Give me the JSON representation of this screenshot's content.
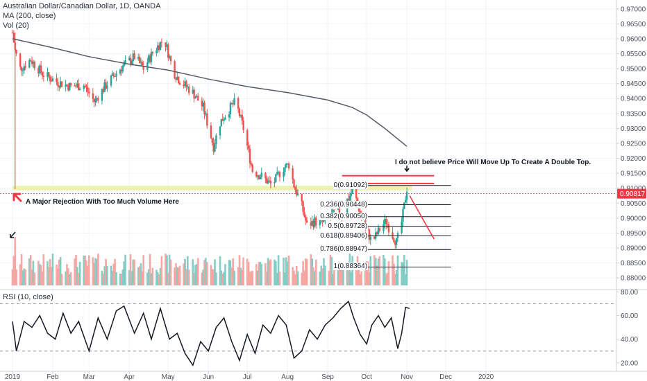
{
  "legend": {
    "symbol_line": "Australian Dollar/Canadian Dollar, 1D, OANDA",
    "ma_line": "MA (200, close)",
    "vol_line": "Vol (20)",
    "rsi_line": "RSI (10, close)"
  },
  "annotations": {
    "double_top_note": "I do not believe Price Will Move Up To Create A Double Top.",
    "rejection_note": "A Major Rejection With Too Much Volume Here"
  },
  "price_label": "0.90817",
  "colors": {
    "up": "#26a69a",
    "down": "#ef5350",
    "vol_up": "#83cdc4",
    "vol_down": "#f6a6a3",
    "ma": "#555a64",
    "rsi": "#131722",
    "support_zone": "#e8f3a8",
    "red_marker": "#f23645",
    "price_tag": "#f23645"
  },
  "chart_data": [
    {
      "type": "candlestick",
      "title": "Australian Dollar/Canadian Dollar, 1D, OANDA",
      "y_axis_side": "right",
      "ylim": [
        0.8775,
        0.9718
      ],
      "yticks": [
        "0.97000",
        "0.96500",
        "0.96000",
        "0.95500",
        "0.95000",
        "0.94500",
        "0.94000",
        "0.93500",
        "0.93000",
        "0.92500",
        "0.92000",
        "0.91500",
        "0.91000",
        "0.90500",
        "0.90000",
        "0.89500",
        "0.89000",
        "0.88500",
        "0.88000"
      ],
      "x_ticks": [
        "2019",
        "Feb",
        "Mar",
        "Apr",
        "May",
        "Jun",
        "Jul",
        "Aug",
        "Sep",
        "Oct",
        "Nov",
        "Dec",
        "2020"
      ],
      "close_path": [
        [
          "2019-01-01",
          0.962
        ],
        [
          "2019-01-03",
          0.956
        ],
        [
          "2019-01-07",
          0.95
        ],
        [
          "2019-01-15",
          0.953
        ],
        [
          "2019-01-25",
          0.948
        ],
        [
          "2019-02-05",
          0.9455
        ],
        [
          "2019-02-15",
          0.944
        ],
        [
          "2019-02-25",
          0.9445
        ],
        [
          "2019-03-05",
          0.939
        ],
        [
          "2019-03-15",
          0.945
        ],
        [
          "2019-03-25",
          0.95
        ],
        [
          "2019-04-05",
          0.954
        ],
        [
          "2019-04-12",
          0.95
        ],
        [
          "2019-04-20",
          0.956
        ],
        [
          "2019-04-28",
          0.96
        ],
        [
          "2019-05-05",
          0.949
        ],
        [
          "2019-05-10",
          0.946
        ],
        [
          "2019-05-20",
          0.942
        ],
        [
          "2019-05-28",
          0.937
        ],
        [
          "2019-06-05",
          0.924
        ],
        [
          "2019-06-10",
          0.932
        ],
        [
          "2019-06-18",
          0.937
        ],
        [
          "2019-06-22",
          0.939
        ],
        [
          "2019-06-28",
          0.93
        ],
        [
          "2019-07-05",
          0.916
        ],
        [
          "2019-07-12",
          0.914
        ],
        [
          "2019-07-20",
          0.911
        ],
        [
          "2019-07-28",
          0.9165
        ],
        [
          "2019-08-02",
          0.918
        ],
        [
          "2019-08-06",
          0.911
        ],
        [
          "2019-08-12",
          0.904
        ],
        [
          "2019-08-16",
          0.8975
        ],
        [
          "2019-08-22",
          0.899
        ],
        [
          "2019-08-28",
          0.8985
        ],
        [
          "2019-09-03",
          0.9
        ],
        [
          "2019-09-08",
          0.903
        ],
        [
          "2019-09-12",
          0.901
        ],
        [
          "2019-09-16",
          0.906
        ],
        [
          "2019-09-20",
          0.909
        ],
        [
          "2019-09-24",
          0.905
        ],
        [
          "2019-09-28",
          0.898
        ],
        [
          "2019-10-02",
          0.895
        ],
        [
          "2019-10-05",
          0.892
        ],
        [
          "2019-10-08",
          0.894
        ],
        [
          "2019-10-12",
          0.897
        ],
        [
          "2019-10-16",
          0.899
        ],
        [
          "2019-10-20",
          0.895
        ],
        [
          "2019-10-24",
          0.892
        ],
        [
          "2019-10-27",
          0.896
        ],
        [
          "2019-10-30",
          0.904
        ],
        [
          "2019-11-01",
          0.91
        ],
        [
          "2019-11-02",
          0.9082
        ]
      ],
      "moving_average": [
        [
          "2019-01-01",
          0.96
        ],
        [
          "2019-02-01",
          0.957
        ],
        [
          "2019-03-01",
          0.954
        ],
        [
          "2019-04-01",
          0.9515
        ],
        [
          "2019-05-01",
          0.9495
        ],
        [
          "2019-06-01",
          0.9465
        ],
        [
          "2019-07-01",
          0.944
        ],
        [
          "2019-08-01",
          0.942
        ],
        [
          "2019-09-01",
          0.9395
        ],
        [
          "2019-09-20",
          0.937
        ],
        [
          "2019-10-01",
          0.9345
        ],
        [
          "2019-10-15",
          0.93
        ],
        [
          "2019-11-01",
          0.924
        ]
      ],
      "rsi": {
        "ylim": [
          14,
          82
        ],
        "yticks": [
          "80.00",
          "60.00",
          "40.00",
          "20.00"
        ],
        "levels": [
          70,
          30
        ],
        "values": [
          [
            "2019-01-01",
            55
          ],
          [
            "2019-01-04",
            30
          ],
          [
            "2019-01-10",
            55
          ],
          [
            "2019-01-16",
            50
          ],
          [
            "2019-01-22",
            60
          ],
          [
            "2019-01-28",
            45
          ],
          [
            "2019-02-03",
            40
          ],
          [
            "2019-02-09",
            62
          ],
          [
            "2019-02-15",
            45
          ],
          [
            "2019-02-21",
            55
          ],
          [
            "2019-03-01",
            30
          ],
          [
            "2019-03-08",
            58
          ],
          [
            "2019-03-15",
            40
          ],
          [
            "2019-03-22",
            64
          ],
          [
            "2019-03-28",
            68
          ],
          [
            "2019-04-05",
            45
          ],
          [
            "2019-04-12",
            62
          ],
          [
            "2019-04-18",
            40
          ],
          [
            "2019-04-25",
            66
          ],
          [
            "2019-05-02",
            40
          ],
          [
            "2019-05-08",
            45
          ],
          [
            "2019-05-14",
            28
          ],
          [
            "2019-05-20",
            18
          ],
          [
            "2019-05-26",
            38
          ],
          [
            "2019-06-01",
            30
          ],
          [
            "2019-06-07",
            50
          ],
          [
            "2019-06-13",
            58
          ],
          [
            "2019-06-19",
            38
          ],
          [
            "2019-06-25",
            22
          ],
          [
            "2019-07-01",
            44
          ],
          [
            "2019-07-07",
            28
          ],
          [
            "2019-07-13",
            52
          ],
          [
            "2019-07-19",
            45
          ],
          [
            "2019-07-25",
            60
          ],
          [
            "2019-07-31",
            52
          ],
          [
            "2019-08-06",
            24
          ],
          [
            "2019-08-12",
            30
          ],
          [
            "2019-08-18",
            48
          ],
          [
            "2019-08-24",
            40
          ],
          [
            "2019-08-30",
            52
          ],
          [
            "2019-09-05",
            58
          ],
          [
            "2019-09-11",
            66
          ],
          [
            "2019-09-17",
            72
          ],
          [
            "2019-09-21",
            58
          ],
          [
            "2019-09-26",
            44
          ],
          [
            "2019-10-01",
            36
          ],
          [
            "2019-10-05",
            52
          ],
          [
            "2019-10-10",
            60
          ],
          [
            "2019-10-15",
            50
          ],
          [
            "2019-10-20",
            58
          ],
          [
            "2019-10-25",
            32
          ],
          [
            "2019-10-28",
            45
          ],
          [
            "2019-10-31",
            67
          ],
          [
            "2019-11-03",
            66
          ]
        ]
      },
      "fibonacci": [
        {
          "level": "0",
          "price": 0.91092,
          "label": "0(0.91092)"
        },
        {
          "level": "0.236",
          "price": 0.90448,
          "label": "0.236(0.90448)"
        },
        {
          "level": "0.382",
          "price": 0.9005,
          "label": "0.382(0.90050)"
        },
        {
          "level": "0.5",
          "price": 0.89728,
          "label": "0.5(0.89728)"
        },
        {
          "level": "0.618",
          "price": 0.89406,
          "label": "0.618(0.89406)"
        },
        {
          "level": "0.786",
          "price": 0.88947,
          "label": "0.786(0.88947)"
        },
        {
          "level": "1",
          "price": 0.88364,
          "label": "1(0.88364)"
        }
      ],
      "resistance_lines": [
        0.9142,
        0.9116
      ],
      "support_zone": [
        0.9093,
        0.9108
      ],
      "last_price": 0.90817
    }
  ]
}
